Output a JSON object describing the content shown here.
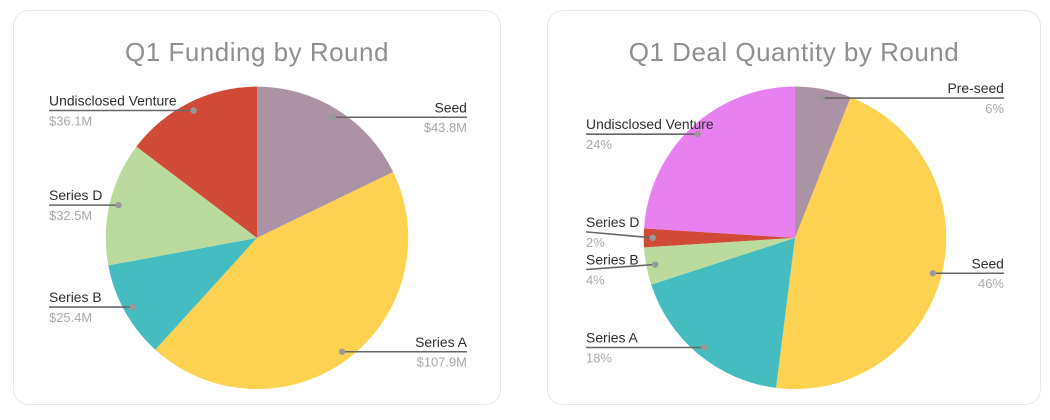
{
  "cards": [
    {
      "title": "Q1 Funding by Round"
    },
    {
      "title": "Q1 Deal Quantity by Round"
    }
  ],
  "chart_data": [
    {
      "type": "pie",
      "title": "Q1 Funding by Round",
      "start_angle": "top",
      "direction": "clockwise",
      "slices": [
        {
          "label": "Seed",
          "value": 43.8,
          "display_value": "$43.8M",
          "color": "#AB93A5",
          "label_side": "right"
        },
        {
          "label": "Series A",
          "value": 107.9,
          "display_value": "$107.9M",
          "color": "#FCD250",
          "label_side": "right"
        },
        {
          "label": "Series B",
          "value": 25.4,
          "display_value": "$25.4M",
          "color": "#45BCC0",
          "label_side": "left"
        },
        {
          "label": "Series D",
          "value": 32.5,
          "display_value": "$32.5M",
          "color": "#BADA9E",
          "label_side": "left"
        },
        {
          "label": "Undisclosed Venture",
          "value": 36.1,
          "display_value": "$36.1M",
          "color": "#D14A38",
          "label_side": "left"
        }
      ]
    },
    {
      "type": "pie",
      "title": "Q1 Deal Quantity by Round",
      "start_angle": "top",
      "direction": "clockwise",
      "slices": [
        {
          "label": "Pre-seed",
          "value": 6,
          "display_value": "6%",
          "color": "#AB93A5",
          "label_side": "right"
        },
        {
          "label": "Seed",
          "value": 46,
          "display_value": "46%",
          "color": "#FCD250",
          "label_side": "right"
        },
        {
          "label": "Series A",
          "value": 18,
          "display_value": "18%",
          "color": "#45BCC0",
          "label_side": "left"
        },
        {
          "label": "Series B",
          "value": 4,
          "display_value": "4%",
          "color": "#BADA9E",
          "label_side": "left"
        },
        {
          "label": "Series D",
          "value": 2,
          "display_value": "2%",
          "color": "#D14A38",
          "label_side": "left"
        },
        {
          "label": "Undisclosed Venture",
          "value": 24,
          "display_value": "24%",
          "color": "#E880F0",
          "label_side": "left"
        }
      ]
    }
  ],
  "style": {
    "card_background": "#ffffff",
    "card_border": "#e8e8e8",
    "title_color": "#8f8f8f",
    "label_name_color": "#2d2d2d",
    "label_value_color": "#a9a9a9",
    "leader_line_color": "#666666",
    "leader_dot_color": "#999999"
  }
}
